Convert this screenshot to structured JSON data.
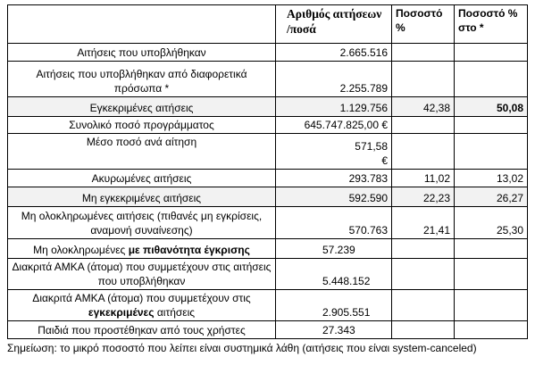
{
  "table": {
    "columns": [
      "Αριθμός αιτήσεων /ποσά",
      "Ποσοστό %",
      "Ποσοστό % στο *"
    ],
    "rows": [
      {
        "label": "Αιτήσεις που υποβλήθηκαν",
        "value": "2.665.516"
      },
      {
        "label": "Αιτήσεις που υποβλήθηκαν από διαφορετικά πρόσωπα *",
        "value": "2.255.789"
      },
      {
        "label": "Εγκεκριμένες αιτήσεις",
        "value": "1.129.756",
        "pct": "42,38",
        "pct_star": "50,08"
      },
      {
        "label": "Συνολικό ποσό προγράμματος",
        "value": "645.747.825,00 €"
      },
      {
        "label": "Μέσο ποσό ανά αίτηση",
        "value": "571,58 €"
      },
      {
        "label": "Ακυρωμένες αιτήσεις",
        "value": "293.783",
        "pct": "11,02",
        "pct_star": "13,02"
      },
      {
        "label": "Μη εγκεκριμένες αιτήσεις",
        "value": "592.590",
        "pct": "22,23",
        "pct_star": "26,27"
      },
      {
        "label": "Μη ολοκληρωμένες αιτήσεις (πιθανές μη εγκρίσεις, αναμονή συναίνεσης)",
        "value": "570.763",
        "pct": "21,41",
        "pct_star": "25,30"
      },
      {
        "label": "Μη ολοκληρωμένες",
        "label_bold": "με πιθανότητα έγκρισης",
        "value": "57.239"
      },
      {
        "label": "Διακριτά ΑΜΚΑ (άτομα) που συμμετέχουν στις αιτήσεις που υποβλήθηκαν",
        "value": "5.448.152"
      },
      {
        "label": "Διακριτά ΑΜΚΑ (άτομα) που συμμετέχουν στις",
        "label_bold": "εγκεκριμένες",
        "label_tail": "αιτήσεις",
        "value": "2.905.551"
      },
      {
        "label": "Παιδιά που προστέθηκαν από τους χρήστες",
        "value": "27.343"
      }
    ]
  },
  "note": "Σημείωση: το μικρό ποσοστό που λείπει είναι συστημικά λάθη (αιτήσεις που είναι system-canceled)"
}
